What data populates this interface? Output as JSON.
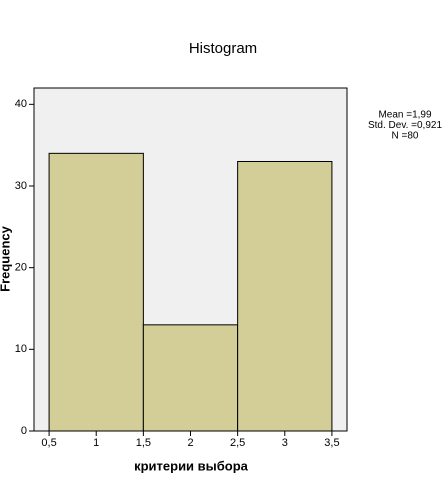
{
  "chart_data": {
    "type": "histogram",
    "title": "Histogram",
    "x_label": "критерии выбора",
    "y_label": "Frequency",
    "bins": [
      0.5,
      1.5,
      2.5,
      3.5
    ],
    "counts": [
      34,
      13,
      33
    ],
    "color": "#d3cd98",
    "xlim": [
      0.34,
      3.66
    ],
    "ylim": [
      0,
      42
    ],
    "xticks": [
      {
        "value": 0.5,
        "label": "0,5"
      },
      1,
      {
        "value": 1.5,
        "label": "1,5"
      },
      2,
      {
        "value": 2.5,
        "label": "2,5"
      },
      3,
      {
        "value": 3.5,
        "label": "3,5"
      }
    ],
    "yticks": [
      0,
      10,
      20,
      30,
      40
    ],
    "stats": [
      "Mean =1,99",
      "Std. Dev. =0,921",
      "N =80"
    ]
  }
}
